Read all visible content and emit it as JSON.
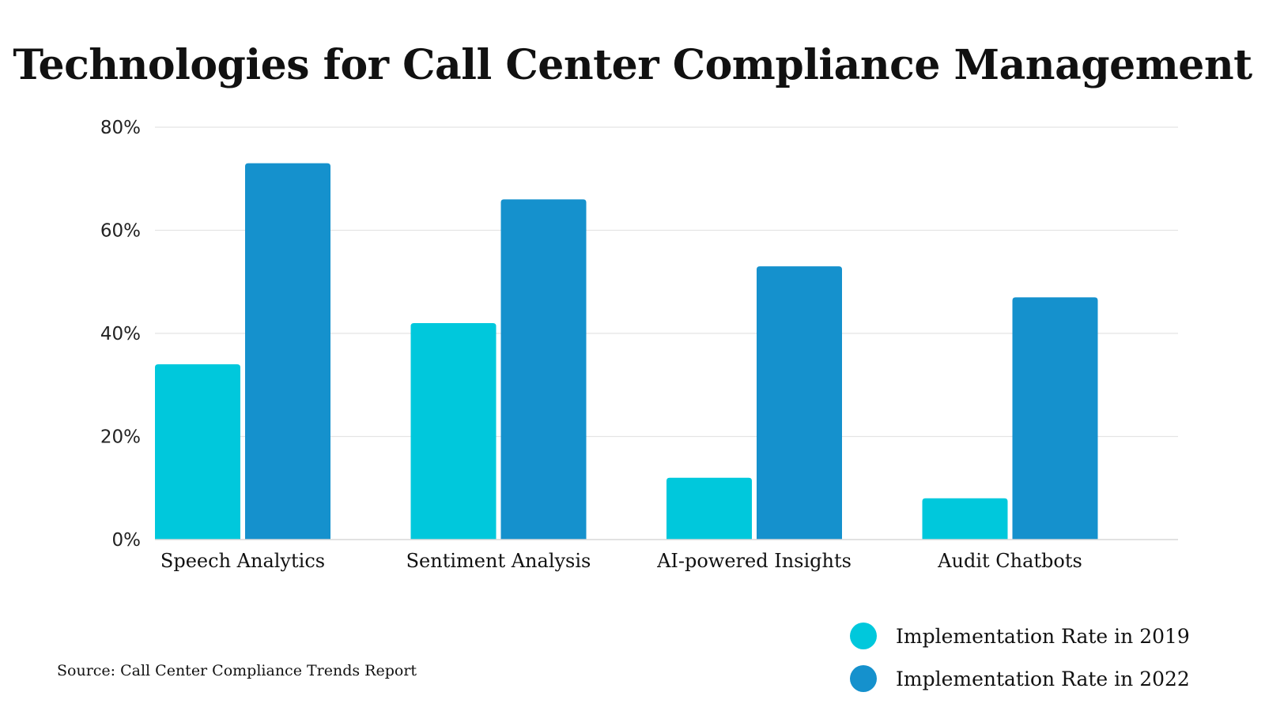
{
  "chart_data": {
    "type": "bar",
    "title": "Technologies for Call Center Compliance Management",
    "categories": [
      "Speech Analytics",
      "Sentiment Analysis",
      "AI-powered Insights",
      "Audit Chatbots"
    ],
    "series": [
      {
        "name": "Implementation Rate in 2019",
        "values": [
          34,
          42,
          12,
          8
        ],
        "color": "#00C8DC"
      },
      {
        "name": "Implementation Rate in 2022",
        "values": [
          73,
          66,
          53,
          47
        ],
        "color": "#1591CD"
      }
    ],
    "y_ticks": [
      "0%",
      "20%",
      "40%",
      "60%",
      "80%"
    ],
    "y_tick_values": [
      0,
      20,
      40,
      60,
      80
    ],
    "ylim": [
      0,
      80
    ],
    "grid": true,
    "legend_position": "bottom-right",
    "source": "Source: Call Center Compliance Trends Report"
  }
}
